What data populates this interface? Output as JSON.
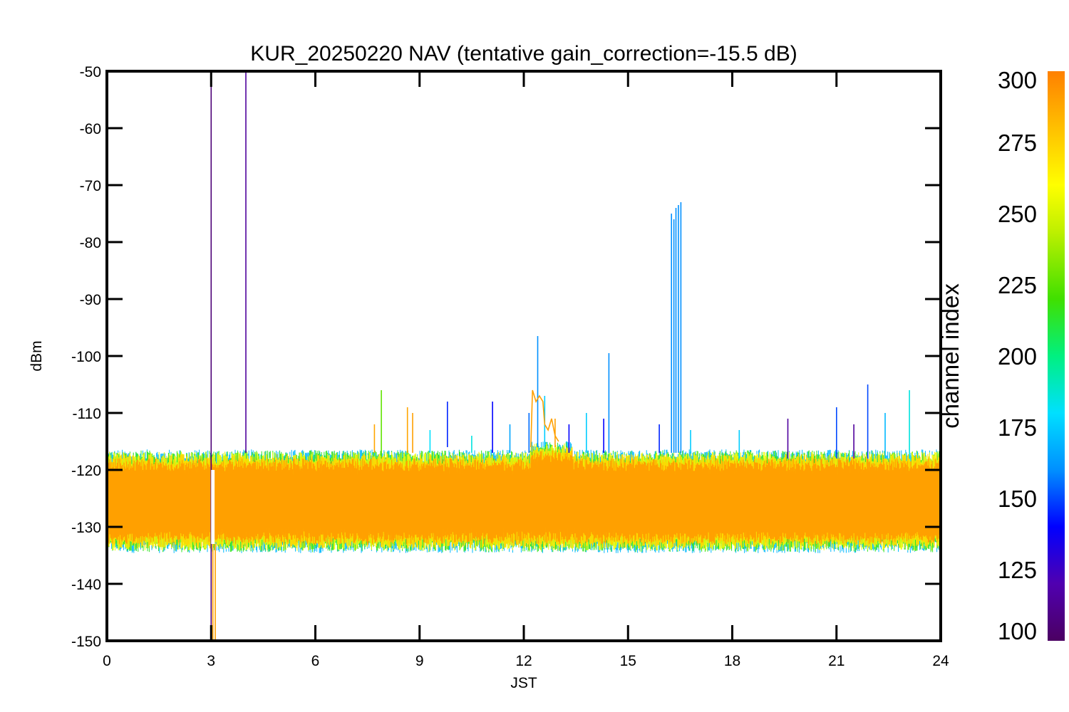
{
  "chart_data": {
    "type": "line",
    "title": "KUR_20250220 NAV (tentative gain_correction=-15.5 dB)",
    "xlabel": "JST",
    "ylabel": "dBm",
    "xlim": [
      0,
      24
    ],
    "ylim": [
      -150,
      -50
    ],
    "x_ticks": [
      0,
      3,
      6,
      9,
      12,
      15,
      18,
      21,
      24
    ],
    "y_ticks": [
      -50,
      -60,
      -70,
      -80,
      -90,
      -100,
      -110,
      -120,
      -130,
      -140,
      -150
    ],
    "grid": false,
    "noise_floor": {
      "center_dBm": -125.5,
      "upper_envelope_dBm": -118,
      "lower_envelope_dBm": -134,
      "dominant_channel_index": 290
    },
    "data_gap": {
      "x_start": 3.0,
      "x_end": 3.1
    },
    "series": [
      {
        "channel_index": 105,
        "points": [
          [
            3.0,
            -150
          ],
          [
            3.0,
            -50
          ]
        ]
      },
      {
        "channel_index": 115,
        "points": [
          [
            4.0,
            -117
          ],
          [
            4.0,
            -50
          ]
        ]
      },
      {
        "channel_index": 290,
        "points": [
          [
            3.05,
            -150
          ],
          [
            3.05,
            -133
          ]
        ]
      },
      {
        "channel_index": 290,
        "points": [
          [
            3.12,
            -150
          ],
          [
            3.12,
            -133
          ]
        ]
      },
      {
        "channel_index": 225,
        "points": [
          [
            7.9,
            -118
          ],
          [
            7.9,
            -106
          ]
        ]
      },
      {
        "channel_index": 288,
        "points": [
          [
            7.7,
            -117
          ],
          [
            7.7,
            -112
          ]
        ]
      },
      {
        "channel_index": 288,
        "points": [
          [
            8.65,
            -117
          ],
          [
            8.65,
            -109
          ]
        ]
      },
      {
        "channel_index": 290,
        "points": [
          [
            8.8,
            -117
          ],
          [
            8.8,
            -110
          ]
        ]
      },
      {
        "channel_index": 180,
        "points": [
          [
            9.3,
            -117
          ],
          [
            9.3,
            -113
          ]
        ]
      },
      {
        "channel_index": 145,
        "points": [
          [
            9.8,
            -116
          ],
          [
            9.8,
            -108
          ]
        ]
      },
      {
        "channel_index": 185,
        "points": [
          [
            10.5,
            -117
          ],
          [
            10.5,
            -114
          ]
        ]
      },
      {
        "channel_index": 140,
        "points": [
          [
            11.1,
            -117
          ],
          [
            11.1,
            -108
          ]
        ]
      },
      {
        "channel_index": 165,
        "points": [
          [
            11.6,
            -117
          ],
          [
            11.6,
            -112
          ]
        ]
      },
      {
        "channel_index": 155,
        "points": [
          [
            12.15,
            -117
          ],
          [
            12.15,
            -110
          ]
        ]
      },
      {
        "channel_index": 160,
        "points": [
          [
            12.4,
            -116
          ],
          [
            12.4,
            -96.5
          ]
        ]
      },
      {
        "channel_index": 175,
        "points": [
          [
            12.6,
            -116
          ],
          [
            12.6,
            -107
          ]
        ]
      },
      {
        "channel_index": 290,
        "points": [
          [
            12.2,
            -116
          ],
          [
            12.25,
            -106
          ],
          [
            12.35,
            -108
          ],
          [
            12.45,
            -107
          ],
          [
            12.55,
            -108
          ],
          [
            12.6,
            -112
          ],
          [
            12.7,
            -113
          ],
          [
            12.8,
            -111
          ],
          [
            12.9,
            -114
          ],
          [
            13.0,
            -115
          ]
        ]
      },
      {
        "channel_index": 290,
        "points": [
          [
            12.9,
            -116
          ],
          [
            12.9,
            -111
          ]
        ]
      },
      {
        "channel_index": 140,
        "points": [
          [
            13.3,
            -117
          ],
          [
            13.3,
            -112
          ]
        ]
      },
      {
        "channel_index": 175,
        "points": [
          [
            13.8,
            -117
          ],
          [
            13.8,
            -110
          ]
        ]
      },
      {
        "channel_index": 140,
        "points": [
          [
            14.3,
            -117
          ],
          [
            14.3,
            -111
          ]
        ]
      },
      {
        "channel_index": 160,
        "points": [
          [
            14.45,
            -117
          ],
          [
            14.45,
            -99.5
          ]
        ]
      },
      {
        "channel_index": 160,
        "points": [
          [
            16.25,
            -117
          ],
          [
            16.25,
            -75
          ]
        ]
      },
      {
        "channel_index": 160,
        "points": [
          [
            16.32,
            -117
          ],
          [
            16.32,
            -76
          ]
        ]
      },
      {
        "channel_index": 160,
        "points": [
          [
            16.38,
            -117
          ],
          [
            16.38,
            -74
          ]
        ]
      },
      {
        "channel_index": 160,
        "points": [
          [
            16.45,
            -117
          ],
          [
            16.45,
            -73.5
          ]
        ]
      },
      {
        "channel_index": 160,
        "points": [
          [
            16.52,
            -117
          ],
          [
            16.52,
            -73
          ]
        ]
      },
      {
        "channel_index": 145,
        "points": [
          [
            15.9,
            -117
          ],
          [
            15.9,
            -112
          ]
        ]
      },
      {
        "channel_index": 175,
        "points": [
          [
            16.8,
            -117
          ],
          [
            16.8,
            -113
          ]
        ]
      },
      {
        "channel_index": 175,
        "points": [
          [
            18.2,
            -118
          ],
          [
            18.2,
            -113
          ]
        ]
      },
      {
        "channel_index": 115,
        "points": [
          [
            19.6,
            -118
          ],
          [
            19.6,
            -111
          ]
        ]
      },
      {
        "channel_index": 150,
        "points": [
          [
            21.0,
            -118
          ],
          [
            21.0,
            -109
          ]
        ]
      },
      {
        "channel_index": 115,
        "points": [
          [
            21.5,
            -118
          ],
          [
            21.5,
            -112
          ]
        ]
      },
      {
        "channel_index": 150,
        "points": [
          [
            21.9,
            -118
          ],
          [
            21.9,
            -105
          ]
        ]
      },
      {
        "channel_index": 170,
        "points": [
          [
            22.4,
            -118
          ],
          [
            22.4,
            -110
          ]
        ]
      },
      {
        "channel_index": 185,
        "points": [
          [
            23.1,
            -118
          ],
          [
            23.1,
            -106
          ]
        ]
      }
    ],
    "colorbar": {
      "label": "channel index",
      "min": 100,
      "max": 300,
      "ticks": [
        100,
        125,
        150,
        175,
        200,
        225,
        250,
        275,
        300
      ],
      "colormap": [
        "#4b0062",
        "#5000b0",
        "#0000ff",
        "#0090ff",
        "#00e0ff",
        "#00f080",
        "#40e000",
        "#c0f000",
        "#ffff00",
        "#ffc000",
        "#ff8000"
      ]
    }
  }
}
